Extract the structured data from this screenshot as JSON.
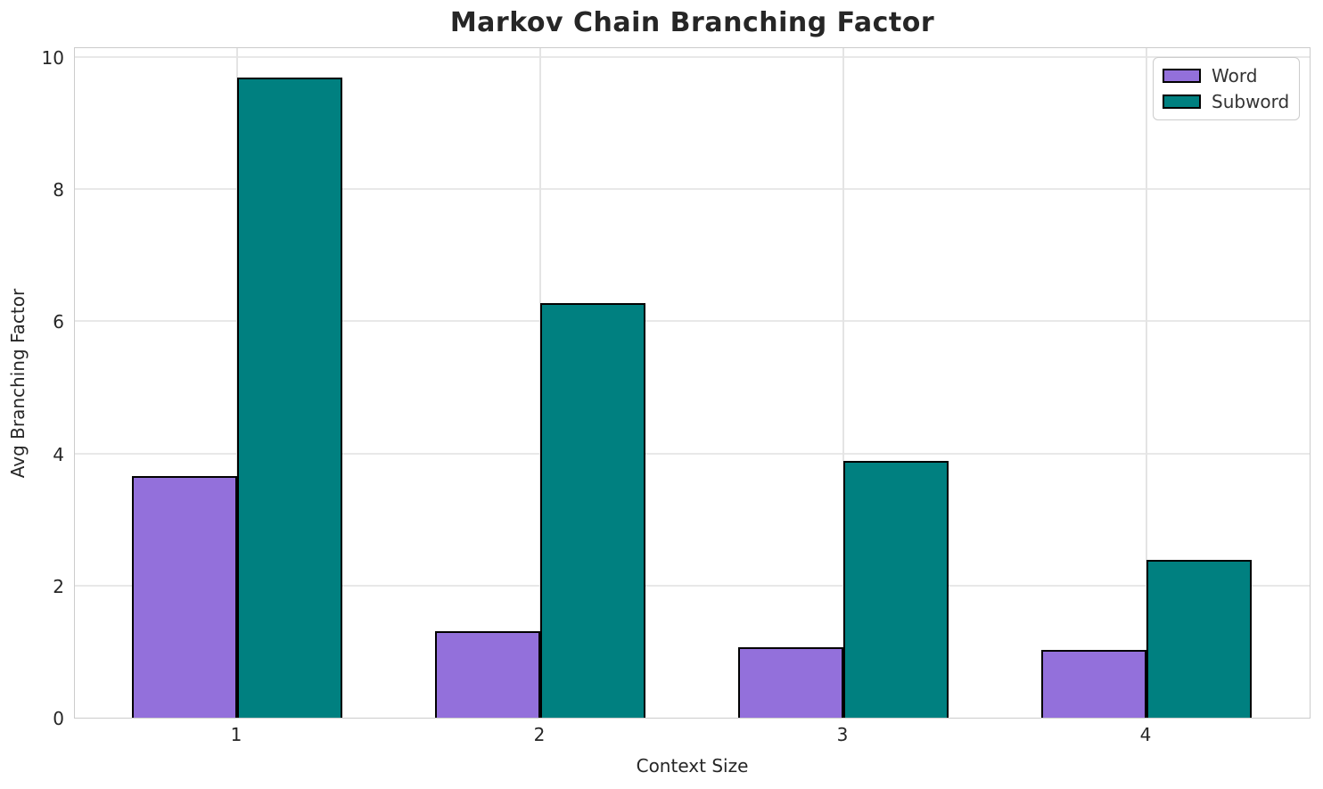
{
  "chart_data": {
    "type": "bar",
    "title": "Markov Chain Branching Factor",
    "xlabel": "Context Size",
    "ylabel": "Avg Branching Factor",
    "categories": [
      "1",
      "2",
      "3",
      "4"
    ],
    "series": [
      {
        "name": "Word",
        "color": "#9370DB",
        "values": [
          3.65,
          1.31,
          1.06,
          1.02
        ]
      },
      {
        "name": "Subword",
        "color": "#008080",
        "values": [
          9.69,
          6.27,
          3.88,
          2.39
        ]
      }
    ],
    "bar_edge_color": "#000000",
    "ylim": [
      0,
      10.16
    ],
    "yticks": [
      0,
      2,
      4,
      6,
      8,
      10
    ],
    "grid": true,
    "legend_position": "upper right"
  },
  "colors": {
    "background": "#ffffff",
    "grid": "#e8e8e8",
    "spine": "#cccccc",
    "text": "#262626",
    "word_bar": "#9370DB",
    "subword_bar": "#008080"
  }
}
